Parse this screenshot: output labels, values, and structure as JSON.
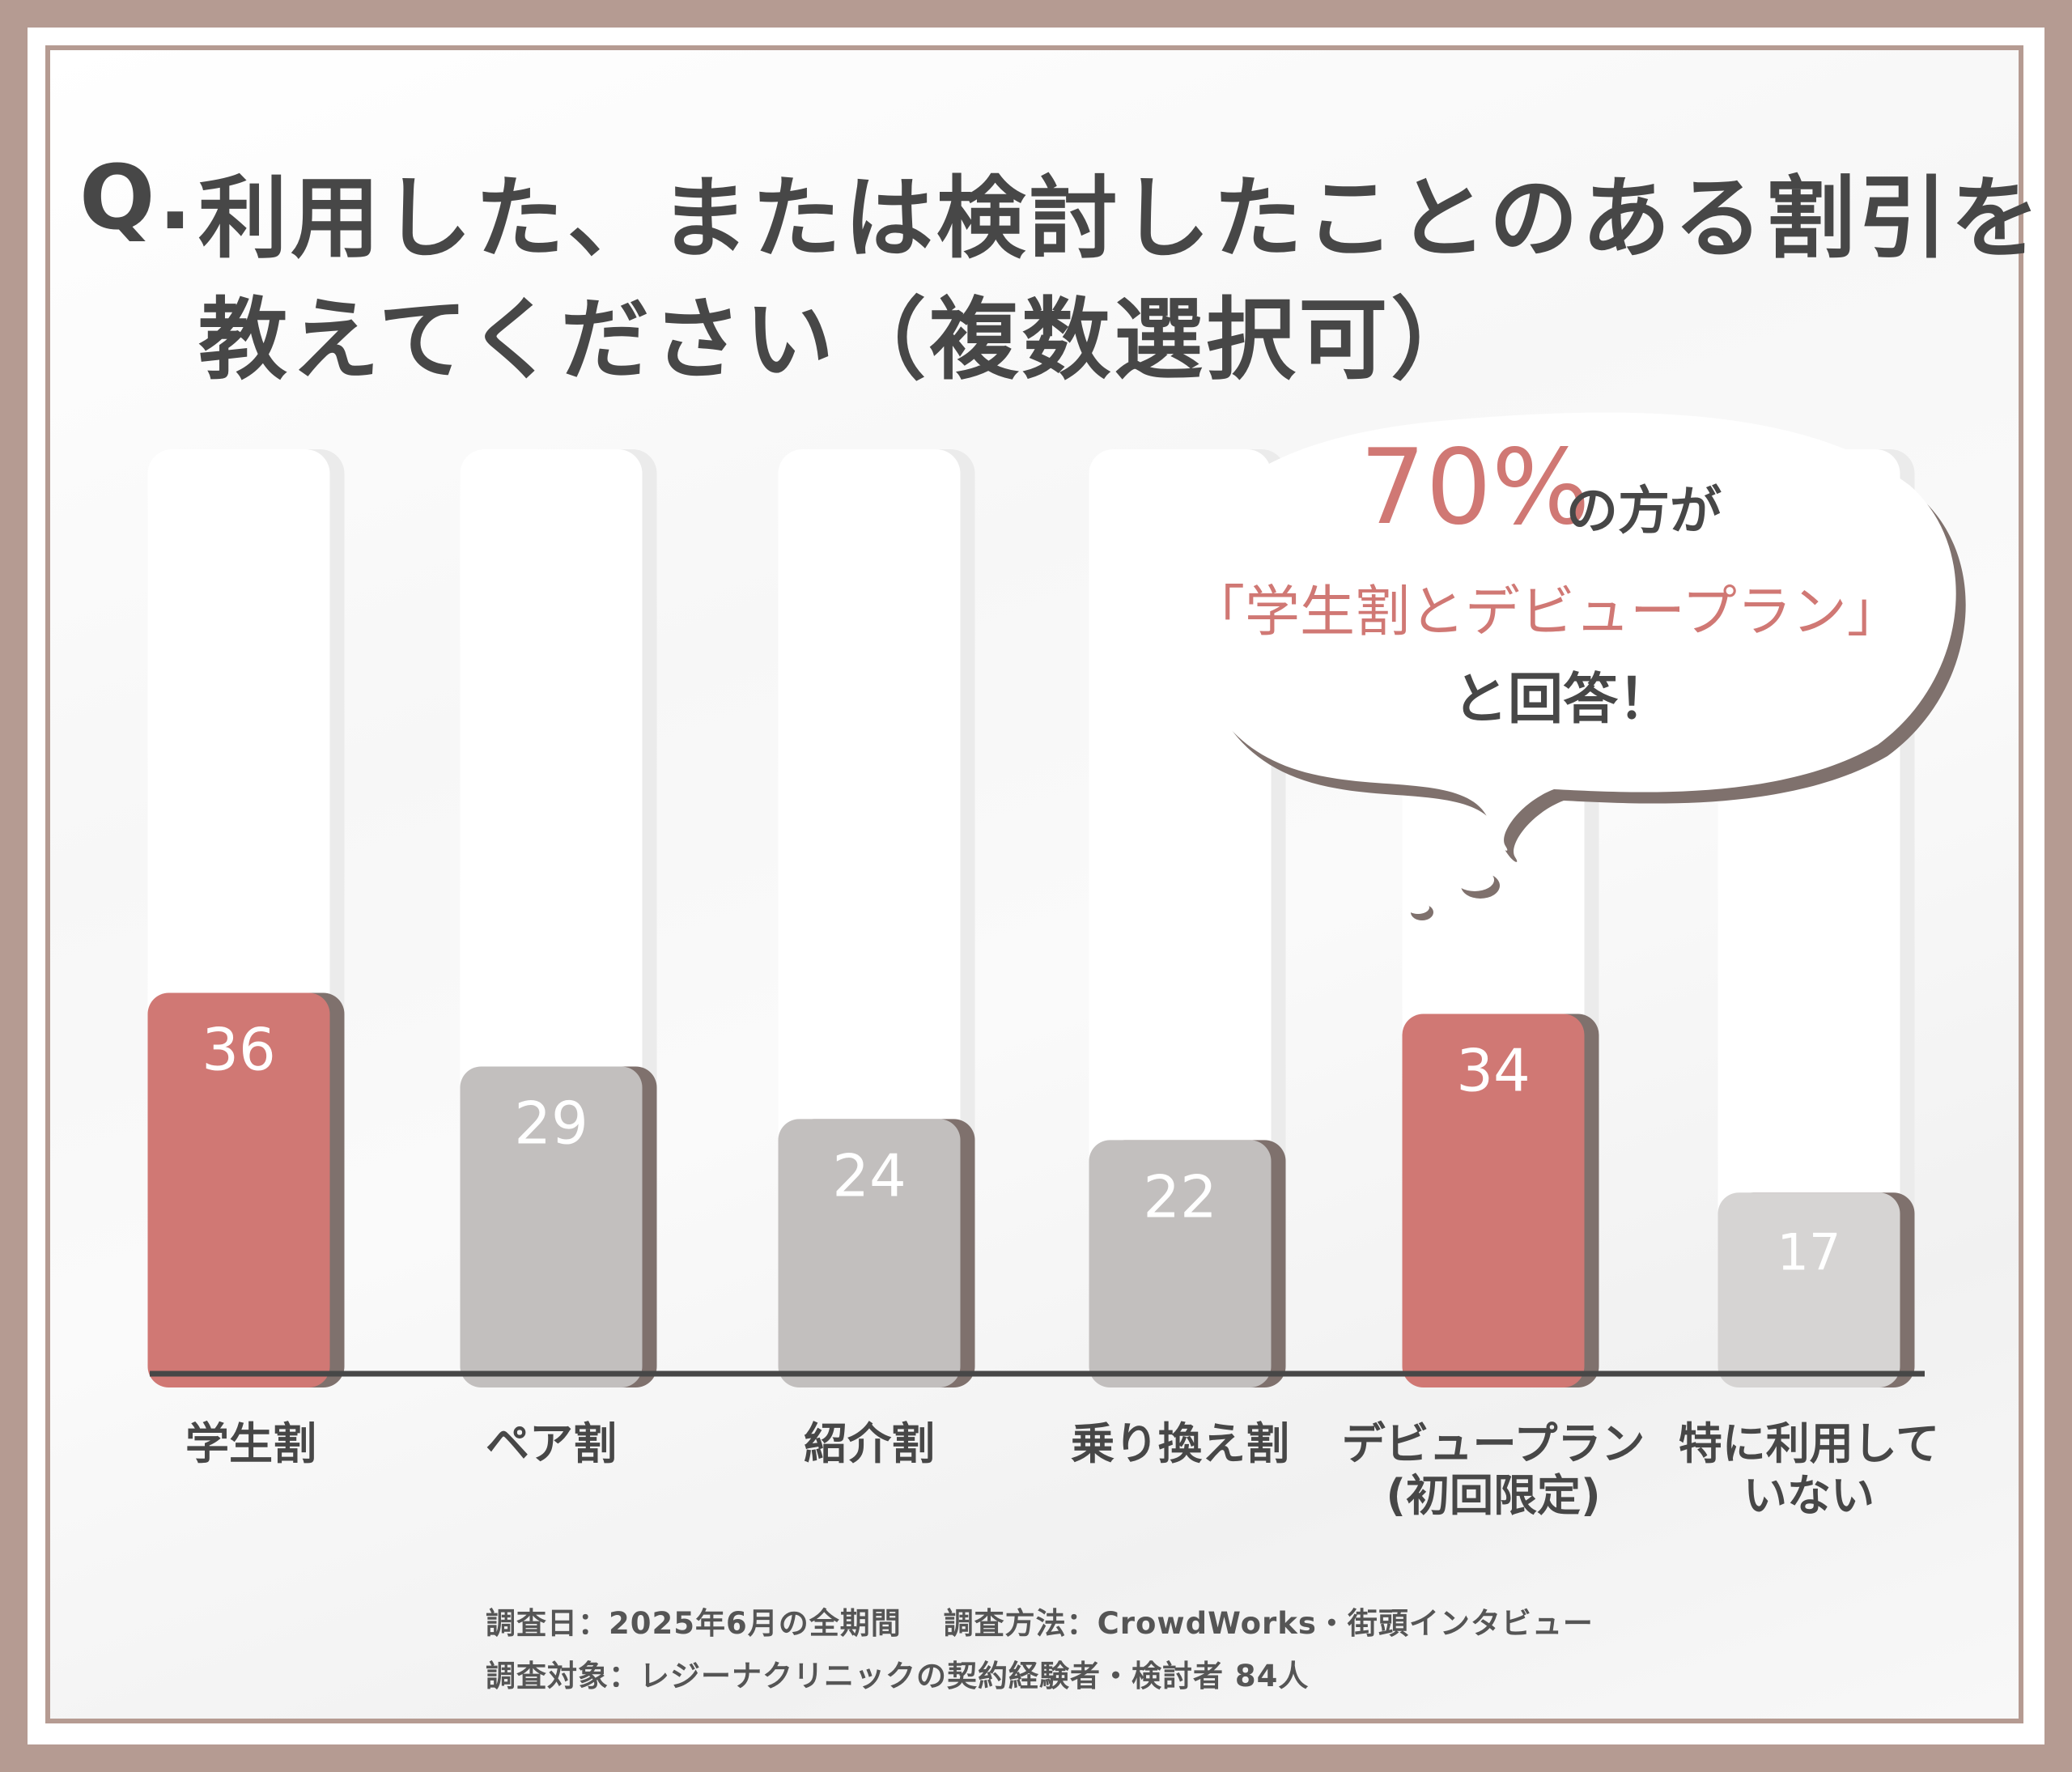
{
  "title": {
    "prefix": "Q.",
    "line1": "利用した、または検討したことのある割引を",
    "line2": "教えてください（複数選択可）"
  },
  "callout": {
    "percent": "70%",
    "line1_suffix": "の方が",
    "line2": "「学生割とデビュープラン」",
    "line3": "と回答！"
  },
  "chart_data": {
    "type": "bar",
    "categories": [
      "学生割",
      "ペア割",
      "紹介割",
      "乗り換え割",
      "デビュープラン\n(初回限定)",
      "特に利用して\nいない"
    ],
    "values": [
      36,
      29,
      24,
      22,
      34,
      17
    ],
    "highlighted": [
      true,
      false,
      false,
      false,
      true,
      false
    ],
    "ylim": [
      0,
      100
    ],
    "colors": {
      "highlight": "#d07874",
      "normal": "#c2bfbe",
      "last": "#d6d4d3",
      "shadow": "#7f716d",
      "axis": "#474747"
    }
  },
  "footnote": {
    "line1": "調査日：2025年6月の全期間　 調査方法：CrowdWorks・街頭インタビュー",
    "line2": "調査対象：レジーナクリニックの契約経験者・検討者 84人"
  }
}
